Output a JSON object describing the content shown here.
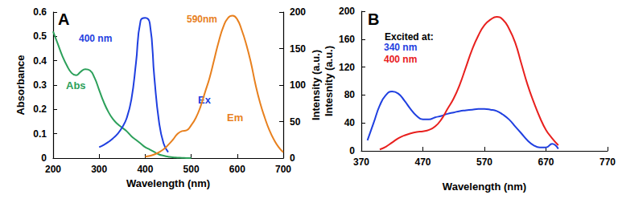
{
  "chart_data": [
    {
      "type": "line",
      "xlabel": "Wavelength (nm)",
      "ylabel": "Absorbance",
      "y2label": "Intensity (a.u.)",
      "x": [
        200,
        210,
        220,
        230,
        240,
        250,
        260,
        270,
        280,
        290,
        300,
        310,
        320,
        330,
        340,
        350,
        360,
        370,
        380,
        390,
        400,
        410,
        420,
        430,
        440,
        450,
        460,
        470,
        480,
        490,
        500,
        510,
        520,
        530,
        540,
        550,
        560,
        570,
        580,
        590,
        600,
        610,
        620,
        630,
        640,
        650,
        660,
        670,
        680,
        690,
        700
      ],
      "xlim": [
        200,
        700
      ],
      "xticks": [
        200,
        300,
        400,
        500,
        600,
        700
      ],
      "ylim": [
        0,
        0.6
      ],
      "yticks": [
        0,
        0.1,
        0.2,
        0.3,
        0.4,
        0.5,
        0.6
      ],
      "y2lim": [
        0,
        200
      ],
      "y2ticks": [
        0,
        50,
        100,
        150,
        200
      ],
      "grid": false,
      "series": [
        {
          "name": "Abs",
          "color": "#2ca05a",
          "axis": "y",
          "values": [
            0.52,
            0.47,
            0.42,
            0.38,
            0.35,
            0.34,
            0.355,
            0.365,
            0.36,
            0.33,
            0.28,
            0.23,
            0.19,
            0.16,
            0.14,
            0.125,
            0.11,
            0.09,
            0.075,
            0.06,
            0.045,
            0.035,
            0.025,
            0.015,
            0.01,
            0.006,
            0.003,
            0.002,
            0.001,
            0,
            0,
            null,
            null,
            null,
            null,
            null,
            null,
            null,
            null,
            null,
            null,
            null,
            null,
            null,
            null,
            null,
            null,
            null,
            null,
            null,
            null
          ]
        },
        {
          "name": "Ex",
          "color": "#1f3fe0",
          "axis": "y2",
          "values": [
            null,
            null,
            null,
            null,
            null,
            null,
            null,
            null,
            null,
            null,
            15,
            18,
            22,
            27,
            33,
            42,
            55,
            80,
            130,
            188,
            192,
            185,
            110,
            50,
            20,
            8,
            null,
            null,
            null,
            null,
            null,
            null,
            null,
            null,
            null,
            null,
            null,
            null,
            null,
            null,
            null,
            null,
            null,
            null,
            null,
            null,
            null,
            null,
            null,
            null,
            null
          ]
        },
        {
          "name": "Em",
          "color": "#e8801e",
          "axis": "y2",
          "values": [
            null,
            null,
            null,
            null,
            null,
            null,
            null,
            null,
            null,
            null,
            null,
            null,
            null,
            null,
            null,
            null,
            null,
            null,
            null,
            null,
            2,
            3,
            5,
            8,
            12,
            18,
            25,
            33,
            37,
            38,
            45,
            55,
            70,
            90,
            110,
            135,
            160,
            180,
            192,
            195,
            190,
            175,
            155,
            130,
            100,
            75,
            55,
            38,
            25,
            15,
            8
          ]
        }
      ],
      "annotations": [
        {
          "text": "A",
          "color": "#000000"
        },
        {
          "text": "400 nm",
          "color": "#1f3fe0"
        },
        {
          "text": "590nm",
          "color": "#e8801e"
        }
      ]
    },
    {
      "type": "line",
      "xlabel": "Wavelength (nm)",
      "ylabel": "Intesnity (a.u.)",
      "x": [
        370,
        380,
        390,
        400,
        410,
        420,
        430,
        440,
        450,
        460,
        470,
        480,
        490,
        500,
        510,
        520,
        530,
        540,
        550,
        560,
        570,
        580,
        590,
        600,
        610,
        620,
        630,
        640,
        650,
        660,
        670,
        680,
        690
      ],
      "xlim": [
        370,
        770
      ],
      "xticks": [
        370,
        470,
        570,
        670,
        770
      ],
      "ylim": [
        0,
        200
      ],
      "yticks": [
        0,
        40,
        80,
        120,
        160,
        200
      ],
      "grid": false,
      "legend": "upper left",
      "series": [
        {
          "name": "340 nm",
          "color": "#1f3fe0",
          "values": [
            null,
            15,
            40,
            65,
            80,
            85,
            82,
            72,
            60,
            50,
            45,
            45,
            48,
            50,
            53,
            55,
            57,
            58,
            59,
            60,
            60,
            59,
            57,
            52,
            45,
            35,
            25,
            15,
            8,
            5,
            5,
            10,
            3
          ]
        },
        {
          "name": "400 nm",
          "color": "#e8201e",
          "values": [
            null,
            null,
            null,
            2,
            6,
            12,
            18,
            22,
            25,
            27,
            28,
            30,
            35,
            45,
            60,
            75,
            95,
            120,
            145,
            165,
            180,
            188,
            192,
            188,
            175,
            155,
            125,
            95,
            70,
            48,
            30,
            18,
            8
          ]
        }
      ],
      "annotations": [
        {
          "text": "B",
          "color": "#000000"
        },
        {
          "text": "Excited at:",
          "color": "#000000"
        }
      ]
    }
  ]
}
